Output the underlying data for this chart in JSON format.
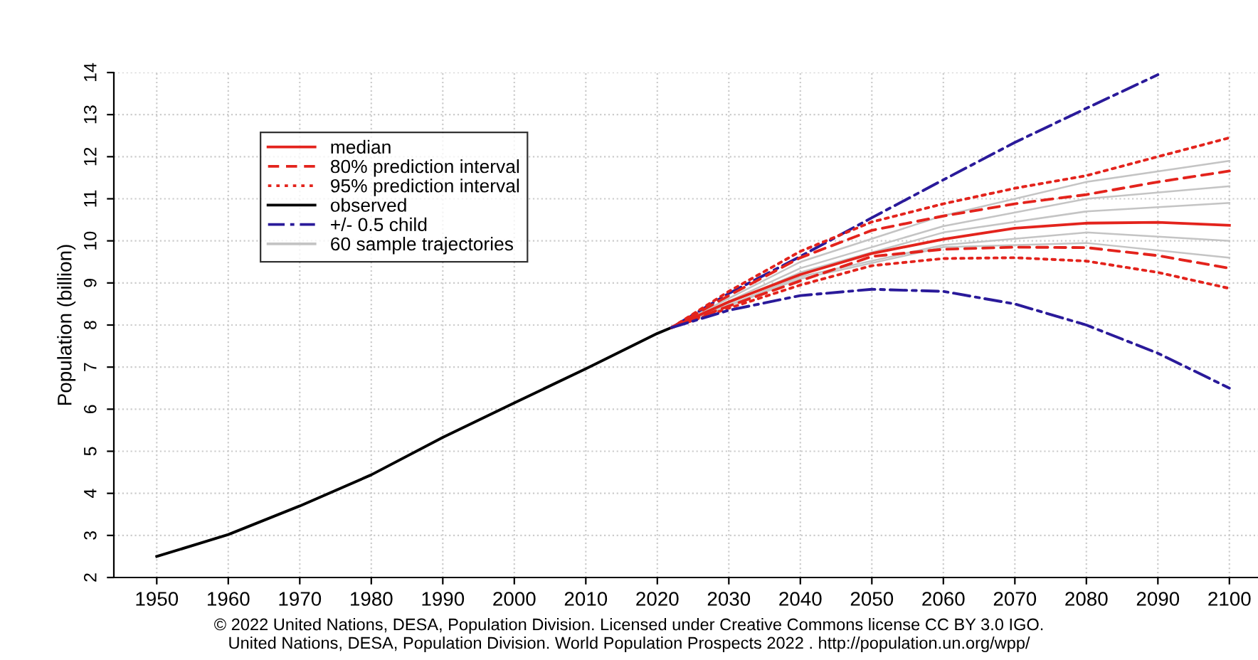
{
  "chart_data": {
    "type": "line",
    "ylabel": "Population (billion)",
    "xlim": [
      1944,
      2104
    ],
    "ylim": [
      2,
      14
    ],
    "xticks": [
      1950,
      1960,
      1970,
      1980,
      1990,
      2000,
      2010,
      2020,
      2030,
      2040,
      2050,
      2060,
      2070,
      2080,
      2090,
      2100
    ],
    "yticks": [
      2,
      3,
      4,
      5,
      6,
      7,
      8,
      9,
      10,
      11,
      12,
      13,
      14
    ],
    "grid": true,
    "legend": "top left",
    "series": [
      {
        "name": "median",
        "color": "#e3231c",
        "line_style": "solid",
        "x": [
          2022,
          2030,
          2040,
          2050,
          2060,
          2070,
          2080,
          2090,
          2100
        ],
        "values": [
          7.94,
          8.55,
          9.2,
          9.7,
          10.04,
          10.3,
          10.42,
          10.44,
          10.37
        ]
      },
      {
        "name": "80% prediction interval",
        "color": "#e3231c",
        "line_style": "dashed",
        "x": [
          2022,
          2030,
          2040,
          2050,
          2060,
          2070,
          2080,
          2090,
          2100
        ],
        "values": [
          7.94,
          8.7,
          9.6,
          10.25,
          10.59,
          10.88,
          11.1,
          11.4,
          11.66
        ]
      },
      {
        "name": "95% prediction interval",
        "color": "#e3231c",
        "line_style": "dotted",
        "x": [
          2022,
          2030,
          2040,
          2050,
          2060,
          2070,
          2080,
          2090,
          2100
        ],
        "values": [
          7.94,
          8.8,
          9.75,
          10.45,
          10.88,
          11.25,
          11.55,
          12.0,
          12.45
        ]
      },
      {
        "name": "observed",
        "color": "#000000",
        "line_style": "solid",
        "x": [
          1950,
          1960,
          1970,
          1980,
          1990,
          2000,
          2010,
          2020,
          2022
        ],
        "values": [
          2.5,
          3.02,
          3.7,
          4.44,
          5.33,
          6.15,
          6.96,
          7.8,
          7.94
        ]
      },
      {
        "name": "+/- 0.5 child",
        "color": "#2a1a9a",
        "line_style": "dashdot",
        "x": [
          2022,
          2030,
          2040,
          2050,
          2060,
          2070,
          2080,
          2090
        ],
        "values": [
          7.94,
          8.75,
          9.63,
          10.55,
          11.45,
          12.34,
          13.15,
          13.95
        ]
      },
      {
        "name": "60 sample trajectories",
        "color": "#c4c4c4",
        "line_style": "solid",
        "x": [
          2022,
          2040,
          2060,
          2080,
          2100
        ],
        "values": [
          7.94,
          9.5,
          10.6,
          11.4,
          11.9
        ]
      },
      {
        "color": "#c4c4c4",
        "line_style": "solid",
        "x": [
          2022,
          2040,
          2060,
          2080,
          2100
        ],
        "values": [
          7.94,
          9.35,
          10.35,
          11.0,
          11.3
        ]
      },
      {
        "color": "#c4c4c4",
        "line_style": "solid",
        "x": [
          2022,
          2040,
          2060,
          2080,
          2100
        ],
        "values": [
          7.94,
          9.25,
          10.2,
          10.7,
          10.9
        ]
      },
      {
        "color": "#c4c4c4",
        "line_style": "solid",
        "x": [
          2022,
          2040,
          2060,
          2080,
          2100
        ],
        "values": [
          7.94,
          9.15,
          9.9,
          10.2,
          10.0
        ]
      },
      {
        "color": "#c4c4c4",
        "line_style": "solid",
        "x": [
          2022,
          2040,
          2060,
          2080,
          2100
        ],
        "values": [
          7.94,
          9.1,
          9.85,
          9.95,
          9.6
        ]
      },
      {
        "color": "#e3231c",
        "line_style": "dashed",
        "x": [
          2022,
          2030,
          2040,
          2050,
          2060,
          2070,
          2080,
          2090,
          2100
        ],
        "values": [
          7.94,
          8.45,
          9.05,
          9.63,
          9.8,
          9.85,
          9.84,
          9.65,
          9.35
        ]
      },
      {
        "color": "#e3231c",
        "line_style": "dotted",
        "x": [
          2022,
          2030,
          2040,
          2050,
          2060,
          2070,
          2080,
          2090,
          2100
        ],
        "values": [
          7.94,
          8.4,
          8.95,
          9.41,
          9.58,
          9.6,
          9.52,
          9.25,
          8.87
        ]
      },
      {
        "color": "#2a1a9a",
        "line_style": "dashdot",
        "x": [
          2022,
          2030,
          2040,
          2050,
          2060,
          2070,
          2080,
          2090,
          2100
        ],
        "values": [
          7.94,
          8.35,
          8.7,
          8.85,
          8.8,
          8.5,
          8.0,
          7.33,
          6.5
        ]
      }
    ],
    "annotations": [
      "© 2022 United Nations, DESA, Population Division. Licensed under Creative Commons license CC BY 3.0 IGO.",
      "United Nations, DESA, Population Division. World Population Prospects 2022 . http://population.un.org/wpp/"
    ]
  }
}
